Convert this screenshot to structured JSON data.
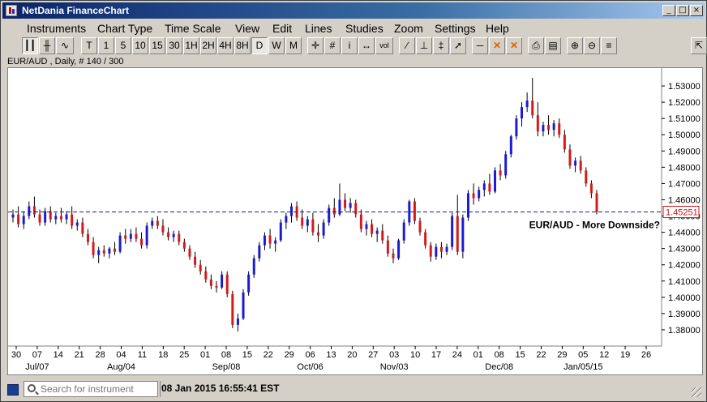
{
  "window": {
    "title": "NetDania FinanceChart",
    "buttons": {
      "minimize": "_",
      "maximize": "□",
      "close": "×"
    }
  },
  "menu": [
    "Instruments",
    "Chart Type",
    "Time Scale",
    "View",
    "Edit",
    "Lines",
    "Studies",
    "Zoom",
    "Settings",
    "Help"
  ],
  "toolbar": {
    "buttons": [
      {
        "label": "┃┃",
        "name": "candlestick-chart-button",
        "selected": true
      },
      {
        "label": "╫",
        "name": "ohlc-chart-button",
        "selected": false
      },
      {
        "label": "∿",
        "name": "line-chart-button",
        "selected": false
      },
      {
        "label": "T",
        "name": "timescale-tick-button",
        "selected": false
      },
      {
        "label": "1",
        "name": "timescale-1min-button",
        "selected": false
      },
      {
        "label": "5",
        "name": "timescale-5min-button",
        "selected": false
      },
      {
        "label": "10",
        "name": "timescale-10min-button",
        "selected": false
      },
      {
        "label": "15",
        "name": "timescale-15min-button",
        "selected": false
      },
      {
        "label": "30",
        "name": "timescale-30min-button",
        "selected": false
      },
      {
        "label": "1H",
        "name": "timescale-1h-button",
        "selected": false
      },
      {
        "label": "2H",
        "name": "timescale-2h-button",
        "selected": false
      },
      {
        "label": "4H",
        "name": "timescale-4h-button",
        "selected": false
      },
      {
        "label": "8H",
        "name": "timescale-8h-button",
        "selected": false
      },
      {
        "label": "D",
        "name": "timescale-daily-button",
        "selected": true
      },
      {
        "label": "W",
        "name": "timescale-weekly-button",
        "selected": false
      },
      {
        "label": "M",
        "name": "timescale-monthly-button",
        "selected": false
      },
      {
        "label": "✛",
        "name": "crosshair-button",
        "selected": false
      },
      {
        "label": "#",
        "name": "grid-button",
        "selected": false
      },
      {
        "label": "i",
        "name": "info-button",
        "selected": false
      },
      {
        "label": "↔",
        "name": "scroll-button",
        "selected": false
      },
      {
        "label": "vol",
        "name": "volume-button",
        "selected": false
      },
      {
        "label": "∕",
        "name": "trendline-button",
        "selected": false
      },
      {
        "label": "⊥",
        "name": "horizontal-line-button",
        "selected": false
      },
      {
        "label": "‡",
        "name": "fibonacci-button",
        "selected": false
      },
      {
        "label": "➚",
        "name": "arrow-button",
        "selected": false
      },
      {
        "label": "─",
        "name": "line-tool-button",
        "selected": false
      },
      {
        "label": "✕",
        "name": "delete-line-button",
        "selected": false
      },
      {
        "label": "✕",
        "name": "delete-all-button",
        "selected": false
      },
      {
        "label": "⎙",
        "name": "print-button",
        "selected": false
      },
      {
        "label": "▤",
        "name": "print-preview-button",
        "selected": false
      },
      {
        "label": "⊕",
        "name": "zoom-in-button",
        "selected": false
      },
      {
        "label": "⊖",
        "name": "zoom-out-button",
        "selected": false
      },
      {
        "label": "≡",
        "name": "zoom-reset-button",
        "selected": false
      },
      {
        "label": "⇱",
        "name": "detach-button",
        "selected": false
      }
    ]
  },
  "chart_caption": "EUR/AUD , Daily, # 140 / 300",
  "annotation": "EUR/AUD - More Downside?",
  "current_price_label": "1.45251",
  "status": {
    "search_placeholder": "Search for instrument",
    "datetime": "08 Jan 2015 16:55:41 EST"
  },
  "colors": {
    "bull": "#1a1ad6",
    "bear": "#d81818",
    "price_line": "#1a1a8c",
    "price_label": "#c81818"
  },
  "chart_data": {
    "type": "candlestick",
    "instrument": "EUR/AUD",
    "timeframe": "Daily",
    "ylim": [
      1.37,
      1.54
    ],
    "y_ticks": [
      "1.53000",
      "1.52000",
      "1.51000",
      "1.50000",
      "1.49000",
      "1.48000",
      "1.47000",
      "1.46000",
      "1.45000",
      "1.44000",
      "1.43000",
      "1.42000",
      "1.41000",
      "1.40000",
      "1.39000",
      "1.38000"
    ],
    "y_tick_values": [
      1.53,
      1.52,
      1.51,
      1.5,
      1.49,
      1.48,
      1.47,
      1.46,
      1.45,
      1.44,
      1.43,
      1.42,
      1.41,
      1.4,
      1.39,
      1.38
    ],
    "x_day_ticks": [
      "30",
      "07",
      "14",
      "21",
      "28",
      "04",
      "11",
      "18",
      "25",
      "01",
      "08",
      "15",
      "22",
      "29",
      "06",
      "13",
      "20",
      "27",
      "03",
      "10",
      "17",
      "24",
      "01",
      "08",
      "15",
      "22",
      "29",
      "05",
      "12",
      "19",
      "26"
    ],
    "x_month_labels": [
      {
        "label": "Jul/07",
        "tick": 1
      },
      {
        "label": "Aug/04",
        "tick": 5
      },
      {
        "label": "Sep/08",
        "tick": 10
      },
      {
        "label": "Oct/06",
        "tick": 14
      },
      {
        "label": "Nov/03",
        "tick": 18
      },
      {
        "label": "Dec/08",
        "tick": 23
      },
      {
        "label": "Jan/05/15",
        "tick": 27
      }
    ],
    "current_price": 1.45251,
    "candles": [
      [
        1.449,
        1.454,
        1.446,
        1.451
      ],
      [
        1.451,
        1.456,
        1.443,
        1.445
      ],
      [
        1.445,
        1.453,
        1.442,
        1.45
      ],
      [
        1.45,
        1.459,
        1.448,
        1.456
      ],
      [
        1.456,
        1.462,
        1.449,
        1.451
      ],
      [
        1.451,
        1.454,
        1.444,
        1.446
      ],
      [
        1.446,
        1.455,
        1.444,
        1.453
      ],
      [
        1.453,
        1.456,
        1.446,
        1.448
      ],
      [
        1.448,
        1.452,
        1.445,
        1.45
      ],
      [
        1.45,
        1.455,
        1.446,
        1.448
      ],
      [
        1.448,
        1.453,
        1.445,
        1.451
      ],
      [
        1.451,
        1.456,
        1.442,
        1.444
      ],
      [
        1.444,
        1.448,
        1.441,
        1.446
      ],
      [
        1.446,
        1.449,
        1.437,
        1.439
      ],
      [
        1.439,
        1.442,
        1.432,
        1.434
      ],
      [
        1.434,
        1.437,
        1.424,
        1.426
      ],
      [
        1.426,
        1.431,
        1.421,
        1.429
      ],
      [
        1.429,
        1.432,
        1.425,
        1.427
      ],
      [
        1.427,
        1.431,
        1.424,
        1.43
      ],
      [
        1.43,
        1.434,
        1.426,
        1.428
      ],
      [
        1.428,
        1.44,
        1.427,
        1.438
      ],
      [
        1.438,
        1.442,
        1.433,
        1.436
      ],
      [
        1.436,
        1.442,
        1.434,
        1.439
      ],
      [
        1.439,
        1.443,
        1.434,
        1.436
      ],
      [
        1.436,
        1.44,
        1.43,
        1.432
      ],
      [
        1.432,
        1.446,
        1.43,
        1.444
      ],
      [
        1.444,
        1.449,
        1.442,
        1.447
      ],
      [
        1.447,
        1.45,
        1.442,
        1.444
      ],
      [
        1.444,
        1.448,
        1.438,
        1.44
      ],
      [
        1.44,
        1.443,
        1.435,
        1.437
      ],
      [
        1.437,
        1.441,
        1.434,
        1.439
      ],
      [
        1.439,
        1.441,
        1.432,
        1.434
      ],
      [
        1.434,
        1.436,
        1.428,
        1.43
      ],
      [
        1.43,
        1.432,
        1.423,
        1.425
      ],
      [
        1.425,
        1.428,
        1.418,
        1.42
      ],
      [
        1.42,
        1.423,
        1.414,
        1.416
      ],
      [
        1.416,
        1.419,
        1.409,
        1.411
      ],
      [
        1.411,
        1.414,
        1.405,
        1.407
      ],
      [
        1.407,
        1.41,
        1.403,
        1.406
      ],
      [
        1.406,
        1.416,
        1.405,
        1.414
      ],
      [
        1.414,
        1.416,
        1.4,
        1.402
      ],
      [
        1.402,
        1.404,
        1.381,
        1.383
      ],
      [
        1.383,
        1.39,
        1.379,
        1.387
      ],
      [
        1.387,
        1.405,
        1.386,
        1.403
      ],
      [
        1.403,
        1.416,
        1.401,
        1.414
      ],
      [
        1.414,
        1.426,
        1.412,
        1.424
      ],
      [
        1.424,
        1.434,
        1.422,
        1.432
      ],
      [
        1.432,
        1.44,
        1.429,
        1.438
      ],
      [
        1.438,
        1.442,
        1.43,
        1.433
      ],
      [
        1.433,
        1.437,
        1.428,
        1.435
      ],
      [
        1.435,
        1.448,
        1.434,
        1.446
      ],
      [
        1.446,
        1.452,
        1.442,
        1.45
      ],
      [
        1.45,
        1.458,
        1.446,
        1.456
      ],
      [
        1.456,
        1.459,
        1.447,
        1.449
      ],
      [
        1.449,
        1.454,
        1.442,
        1.444
      ],
      [
        1.444,
        1.45,
        1.44,
        1.448
      ],
      [
        1.448,
        1.452,
        1.438,
        1.44
      ],
      [
        1.44,
        1.445,
        1.434,
        1.438
      ],
      [
        1.438,
        1.448,
        1.436,
        1.446
      ],
      [
        1.446,
        1.457,
        1.444,
        1.455
      ],
      [
        1.455,
        1.461,
        1.449,
        1.451
      ],
      [
        1.451,
        1.47,
        1.45,
        1.46
      ],
      [
        1.46,
        1.464,
        1.453,
        1.455
      ],
      [
        1.455,
        1.461,
        1.452,
        1.458
      ],
      [
        1.458,
        1.46,
        1.449,
        1.451
      ],
      [
        1.451,
        1.454,
        1.44,
        1.442
      ],
      [
        1.442,
        1.447,
        1.438,
        1.445
      ],
      [
        1.445,
        1.448,
        1.437,
        1.439
      ],
      [
        1.439,
        1.443,
        1.434,
        1.441
      ],
      [
        1.441,
        1.445,
        1.433,
        1.435
      ],
      [
        1.435,
        1.438,
        1.425,
        1.427
      ],
      [
        1.427,
        1.43,
        1.421,
        1.424
      ],
      [
        1.424,
        1.436,
        1.423,
        1.435
      ],
      [
        1.435,
        1.448,
        1.433,
        1.446
      ],
      [
        1.446,
        1.46,
        1.444,
        1.459
      ],
      [
        1.459,
        1.461,
        1.445,
        1.447
      ],
      [
        1.447,
        1.449,
        1.438,
        1.44
      ],
      [
        1.44,
        1.442,
        1.43,
        1.432
      ],
      [
        1.432,
        1.434,
        1.422,
        1.425
      ],
      [
        1.425,
        1.433,
        1.423,
        1.431
      ],
      [
        1.431,
        1.434,
        1.424,
        1.428
      ],
      [
        1.428,
        1.433,
        1.426,
        1.431
      ],
      [
        1.431,
        1.452,
        1.429,
        1.45
      ],
      [
        1.45,
        1.463,
        1.426,
        1.428
      ],
      [
        1.428,
        1.451,
        1.424,
        1.449
      ],
      [
        1.449,
        1.466,
        1.447,
        1.464
      ],
      [
        1.464,
        1.47,
        1.457,
        1.461
      ],
      [
        1.461,
        1.468,
        1.459,
        1.466
      ],
      [
        1.466,
        1.472,
        1.462,
        1.47
      ],
      [
        1.47,
        1.476,
        1.463,
        1.465
      ],
      [
        1.465,
        1.48,
        1.464,
        1.478
      ],
      [
        1.478,
        1.482,
        1.472,
        1.475
      ],
      [
        1.475,
        1.49,
        1.473,
        1.488
      ],
      [
        1.488,
        1.5,
        1.486,
        1.499
      ],
      [
        1.499,
        1.512,
        1.497,
        1.51
      ],
      [
        1.51,
        1.52,
        1.505,
        1.517
      ],
      [
        1.517,
        1.526,
        1.514,
        1.521
      ],
      [
        1.521,
        1.535,
        1.51,
        1.512
      ],
      [
        1.512,
        1.52,
        1.499,
        1.502
      ],
      [
        1.502,
        1.508,
        1.499,
        1.506
      ],
      [
        1.506,
        1.512,
        1.5,
        1.503
      ],
      [
        1.503,
        1.509,
        1.499,
        1.507
      ],
      [
        1.507,
        1.51,
        1.498,
        1.5
      ],
      [
        1.5,
        1.503,
        1.489,
        1.491
      ],
      [
        1.491,
        1.494,
        1.479,
        1.481
      ],
      [
        1.481,
        1.486,
        1.477,
        1.484
      ],
      [
        1.484,
        1.487,
        1.476,
        1.478
      ],
      [
        1.478,
        1.48,
        1.468,
        1.47
      ],
      [
        1.47,
        1.472,
        1.461,
        1.464
      ],
      [
        1.464,
        1.466,
        1.451,
        1.4525
      ]
    ]
  }
}
